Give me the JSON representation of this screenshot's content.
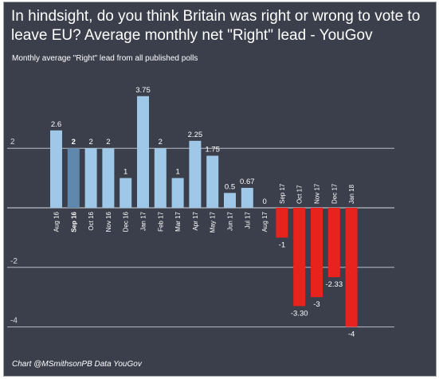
{
  "header": {
    "title": "In hindsight, do you think Britain was right or wrong to vote to leave EU? Average monthly net \"Right\" lead - YouGov",
    "subtitle": "Monthly average \"Right\" lead from all published polls"
  },
  "footer": {
    "credit": "Chart @MSmithsonPB Data YouGov"
  },
  "chart_data": {
    "type": "bar",
    "title": "In hindsight, do you think Britain was right or wrong to vote to leave EU? Average monthly net \"Right\" lead - YouGov",
    "subtitle": "Monthly average \"Right\" lead from all published polls",
    "xlabel": "",
    "ylabel": "",
    "ylim": [
      -4.5,
      4.5
    ],
    "yticks": [
      {
        "value": 2,
        "label": "2"
      },
      {
        "value": 0,
        "label": ""
      },
      {
        "value": -2,
        "label": "-2"
      },
      {
        "value": -4,
        "label": "-4"
      }
    ],
    "grid": true,
    "legend": "none",
    "categories": [
      "Aug 16",
      "Sep 16",
      "Oct 16",
      "Nov 16",
      "Dec 16",
      "Jan 17",
      "Feb 17",
      "Mar 17",
      "Apr 17",
      "May 17",
      "Jun 17",
      "Jul 17",
      "Aug 17",
      "Sep 17",
      "Oct 17",
      "Nov 17",
      "Dec 17",
      "Jan 18"
    ],
    "values": [
      2.6,
      2,
      2,
      2,
      1,
      3.75,
      2,
      1,
      2.25,
      1.75,
      0.5,
      0.67,
      0,
      -1,
      -3.3,
      -3,
      -2.33,
      -4
    ],
    "labels": [
      "2.6",
      "2",
      "2",
      "2",
      "1",
      "3.75",
      "2",
      "1",
      "2.25",
      "1.75",
      "0.5",
      "0.67",
      "0",
      "-1",
      "-3.30",
      "-3",
      "-2.33",
      "-4"
    ],
    "highlight_index": 1,
    "colors": {
      "positive": "#9fc8e8",
      "highlight": "#5e89ad",
      "negative": "#e8231e",
      "background": "#3a3f4b",
      "gridline": "#b9bdc4"
    }
  }
}
